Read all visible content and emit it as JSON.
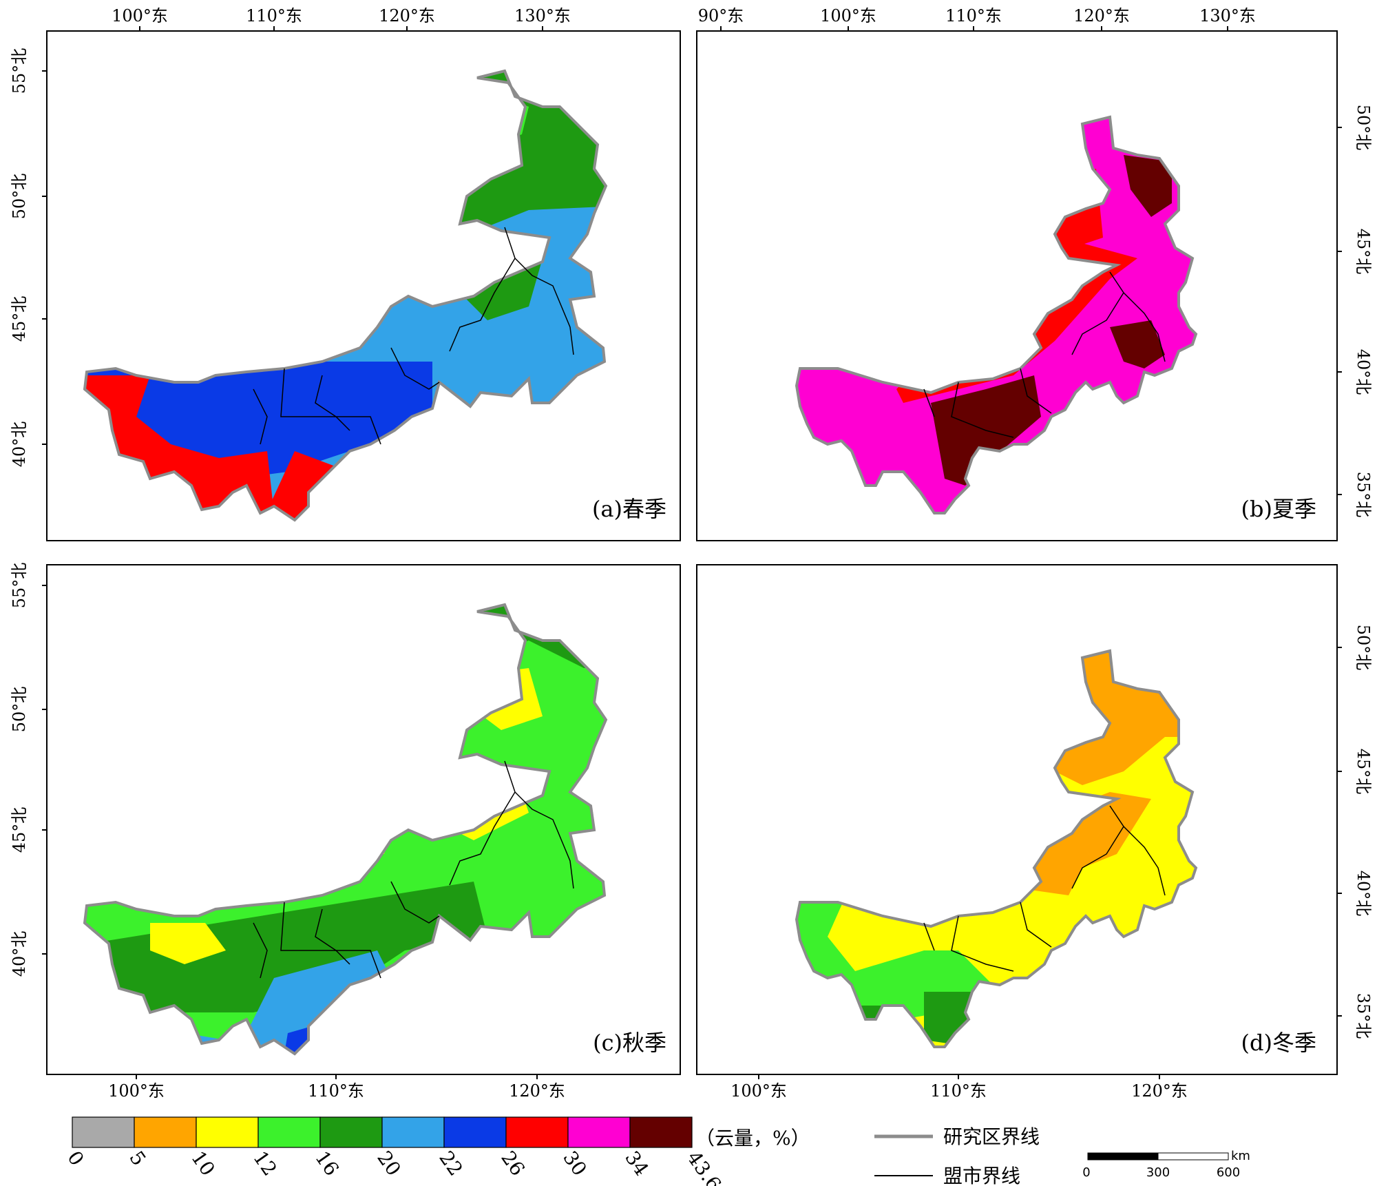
{
  "panels": [
    {
      "label": "(a)春季",
      "top_ticks": [
        "100°东",
        "110°东",
        "120°东",
        "130°东"
      ],
      "side_ticks": [
        "55°北",
        "50°北",
        "45°北",
        "40°北"
      ],
      "fill_colors": [
        "#1e9a12",
        "#33a3e8",
        "#0a3ae6",
        "#ff0000",
        "#3cf12c"
      ]
    },
    {
      "label": "(b)夏季",
      "top_ticks": [
        "90°东",
        "100°东",
        "110°东",
        "120°东",
        "130°东"
      ],
      "side_ticks": [
        "50°北",
        "45°北",
        "40°北",
        "35°北"
      ],
      "fill_colors": [
        "#ff00d2",
        "#ff0000",
        "#640000",
        "#0a3ae6"
      ]
    },
    {
      "label": "(c)秋季",
      "bottom_ticks": [
        "100°东",
        "110°东",
        "120°东"
      ],
      "side_ticks": [
        "55°北",
        "50°北",
        "45°北",
        "40°北"
      ],
      "fill_colors": [
        "#3cf12c",
        "#1e9a12",
        "#ffff00",
        "#33a3e8",
        "#0a3ae6"
      ]
    },
    {
      "label": "(d)冬季",
      "bottom_ticks": [
        "100°东",
        "110°东",
        "120°东"
      ],
      "side_ticks": [
        "50°北",
        "45°北",
        "40°北",
        "35°北"
      ],
      "fill_colors": [
        "#ffa500",
        "#ffff00",
        "#3cf12c",
        "#1e9a12"
      ]
    }
  ],
  "legend": {
    "bins": [
      {
        "from": 0,
        "to": 5,
        "color": "#a9a9a9"
      },
      {
        "from": 5,
        "to": 10,
        "color": "#ffa500"
      },
      {
        "from": 10,
        "to": 12,
        "color": "#ffff00"
      },
      {
        "from": 12,
        "to": 16,
        "color": "#3cf12c"
      },
      {
        "from": 16,
        "to": 20,
        "color": "#1e9a12"
      },
      {
        "from": 20,
        "to": 22,
        "color": "#33a3e8"
      },
      {
        "from": 22,
        "to": 26,
        "color": "#0a3ae6"
      },
      {
        "from": 26,
        "to": 30,
        "color": "#ff0000"
      },
      {
        "from": 30,
        "to": 34,
        "color": "#ff00d2"
      },
      {
        "from": 34,
        "to": 43.6,
        "color": "#640000"
      }
    ],
    "tick_labels": [
      "0",
      "5",
      "10",
      "12",
      "16",
      "20",
      "22",
      "26",
      "30",
      "34",
      "43.6"
    ],
    "title": "（云量，%）",
    "study_boundary_label": "研究区界线",
    "league_boundary_label": "盟市界线",
    "study_boundary_color": "#8c8c8c",
    "league_boundary_color": "#000000"
  },
  "scalebar": {
    "unit": "km",
    "labels": [
      "0",
      "300",
      "600"
    ]
  }
}
